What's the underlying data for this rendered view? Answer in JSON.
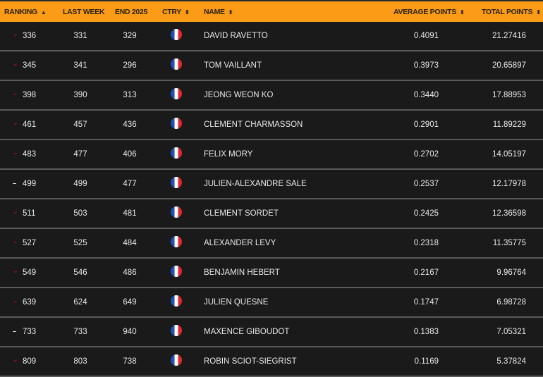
{
  "header": {
    "ranking": "RANKING",
    "last_week": "LAST WEEK",
    "end_2025": "END 2025",
    "ctry": "CTRY",
    "name": "NAME",
    "average_points": "AVERAGE POINTS",
    "total_points": "TOTAL POINTS",
    "sort_asc_icon": "▲",
    "sort_both_icon": "⬍"
  },
  "colors": {
    "header_bg": "#fb9b16",
    "row_bg": "#1b1a1a",
    "trend_down": "#d0102a"
  },
  "rows": [
    {
      "trend": "down",
      "trend_icon": "⌄",
      "rank": "336",
      "last_week": "331",
      "end_2025": "329",
      "country": "France",
      "name": "DAVID RAVETTO",
      "avg": "0.4091",
      "total": "21.27416"
    },
    {
      "trend": "down",
      "trend_icon": "⌄",
      "rank": "345",
      "last_week": "341",
      "end_2025": "296",
      "country": "France",
      "name": "TOM VAILLANT",
      "avg": "0.3973",
      "total": "20.65897"
    },
    {
      "trend": "down",
      "trend_icon": "⌄",
      "rank": "398",
      "last_week": "390",
      "end_2025": "313",
      "country": "France",
      "name": "JEONG WEON KO",
      "avg": "0.3440",
      "total": "17.88953"
    },
    {
      "trend": "down",
      "trend_icon": "⌄",
      "rank": "461",
      "last_week": "457",
      "end_2025": "436",
      "country": "France",
      "name": "CLEMENT CHARMASSON",
      "avg": "0.2901",
      "total": "11.89229"
    },
    {
      "trend": "down",
      "trend_icon": "⌄",
      "rank": "483",
      "last_week": "477",
      "end_2025": "406",
      "country": "France",
      "name": "FELIX MORY",
      "avg": "0.2702",
      "total": "14.05197"
    },
    {
      "trend": "same",
      "trend_icon": "–",
      "rank": "499",
      "last_week": "499",
      "end_2025": "477",
      "country": "France",
      "name": "JULIEN-ALEXANDRE SALE",
      "avg": "0.2537",
      "total": "12.17978"
    },
    {
      "trend": "down",
      "trend_icon": "⌄",
      "rank": "511",
      "last_week": "503",
      "end_2025": "481",
      "country": "France",
      "name": "CLEMENT SORDET",
      "avg": "0.2425",
      "total": "12.36598"
    },
    {
      "trend": "down",
      "trend_icon": "⌄",
      "rank": "527",
      "last_week": "525",
      "end_2025": "484",
      "country": "France",
      "name": "ALEXANDER LEVY",
      "avg": "0.2318",
      "total": "11.35775"
    },
    {
      "trend": "down",
      "trend_icon": "⌄",
      "rank": "549",
      "last_week": "546",
      "end_2025": "486",
      "country": "France",
      "name": "BENJAMIN HEBERT",
      "avg": "0.2167",
      "total": "9.96764"
    },
    {
      "trend": "down",
      "trend_icon": "⌄",
      "rank": "639",
      "last_week": "624",
      "end_2025": "649",
      "country": "France",
      "name": "JULIEN QUESNE",
      "avg": "0.1747",
      "total": "6.98728"
    },
    {
      "trend": "same",
      "trend_icon": "–",
      "rank": "733",
      "last_week": "733",
      "end_2025": "940",
      "country": "France",
      "name": "MAXENCE GIBOUDOT",
      "avg": "0.1383",
      "total": "7.05321"
    },
    {
      "trend": "down",
      "trend_icon": "⌄",
      "rank": "809",
      "last_week": "803",
      "end_2025": "738",
      "country": "France",
      "name": "ROBIN SCIOT-SIEGRIST",
      "avg": "0.1169",
      "total": "5.37824"
    }
  ]
}
